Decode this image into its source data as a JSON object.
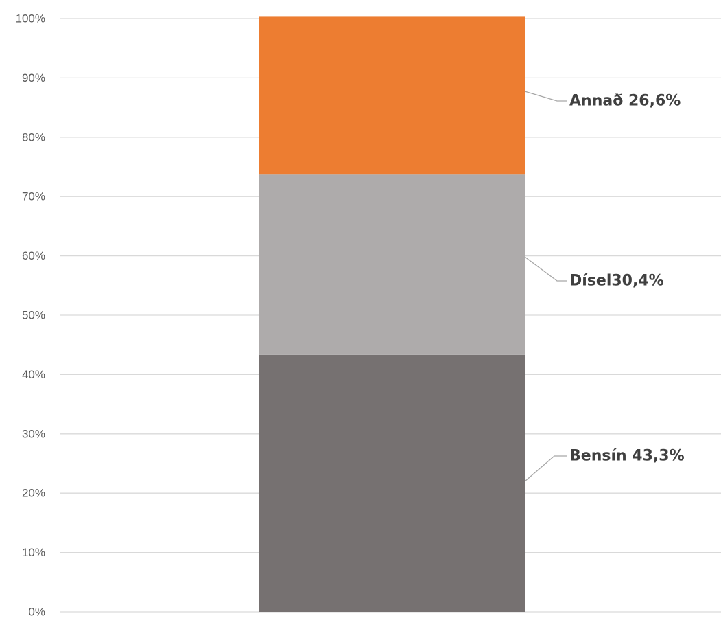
{
  "chart_data": {
    "type": "bar",
    "stacked": true,
    "normalized": true,
    "title": "",
    "xlabel": "",
    "ylabel": "",
    "ylim": [
      0,
      100
    ],
    "y_ticks": [
      "0%",
      "10%",
      "20%",
      "30%",
      "40%",
      "50%",
      "60%",
      "70%",
      "80%",
      "90%",
      "100%"
    ],
    "grid": true,
    "legend": "none",
    "categories": [
      ""
    ],
    "series": [
      {
        "name": "Bensín",
        "values": [
          43.3
        ],
        "color": "#767171",
        "label": "Bensín 43,3%"
      },
      {
        "name": "Dísel",
        "values": [
          30.4
        ],
        "color": "#AEABAB",
        "label": "Dísel30,4%"
      },
      {
        "name": "Annað",
        "values": [
          26.6
        ],
        "color": "#ED7D31",
        "label": "Annað 26,6%"
      }
    ]
  }
}
